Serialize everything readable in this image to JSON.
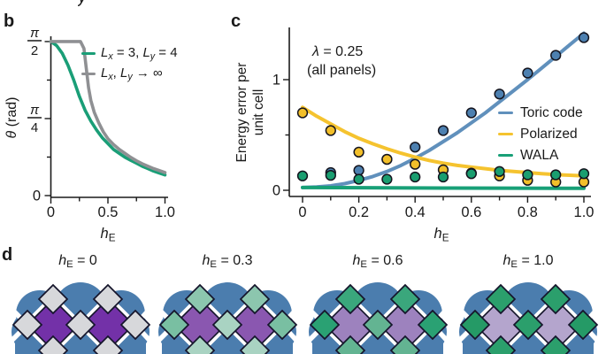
{
  "fragment_top": {
    "text": "y"
  },
  "panel_b": {
    "label": "b",
    "ylabel_segments": [
      {
        "t": "θ",
        "i": true
      },
      {
        "t": " (rad)"
      }
    ],
    "xlabel_segments": [
      {
        "t": "h",
        "i": true
      },
      {
        "t": "E",
        "sub": true
      }
    ],
    "legend": [
      {
        "color": "#1a9e77",
        "segments": [
          {
            "t": "L",
            "i": true
          },
          {
            "t": "x",
            "i": true,
            "sub": true
          },
          {
            "t": " = 3, "
          },
          {
            "t": "L",
            "i": true
          },
          {
            "t": "y",
            "i": true,
            "sub": true
          },
          {
            "t": " = 4"
          }
        ]
      },
      {
        "color": "#8f9093",
        "segments": [
          {
            "t": "L",
            "i": true
          },
          {
            "t": "x",
            "i": true,
            "sub": true
          },
          {
            "t": ", "
          },
          {
            "t": "L",
            "i": true
          },
          {
            "t": "y",
            "i": true,
            "sub": true
          },
          {
            "t": " → ∞"
          }
        ]
      }
    ]
  },
  "panel_c": {
    "label": "c",
    "annotation_line1_segments": [
      {
        "t": "λ",
        "i": true
      },
      {
        "t": " = 0.25"
      }
    ],
    "annotation_line2": "(all panels)",
    "ylabel_line1": "Energy error per",
    "ylabel_line2": "unit cell",
    "xlabel_segments": [
      {
        "t": "h",
        "i": true
      },
      {
        "t": "E",
        "sub": true
      }
    ],
    "legend": [
      {
        "label": "Toric code",
        "color": "#6090bc"
      },
      {
        "label": "Polarized",
        "color": "#f5c32f"
      },
      {
        "label": "WALA",
        "color": "#18a077"
      }
    ]
  },
  "panel_d": {
    "label": "d",
    "cloud_color": "#4b7dae",
    "outline_color": "#15152b",
    "street_color": "#ffffff",
    "panels": [
      {
        "label_segments": [
          {
            "t": "h",
            "i": true
          },
          {
            "t": "E",
            "sub": true
          },
          {
            "t": " = 0"
          }
        ],
        "large": "#7331a8",
        "small_top": "#d7d8db",
        "small_side": "#d7d8db",
        "small_center": "#d7d8db"
      },
      {
        "label_segments": [
          {
            "t": "h",
            "i": true
          },
          {
            "t": "E",
            "sub": true
          },
          {
            "t": " = 0.3"
          }
        ],
        "large": "#8a57b0",
        "small_top": "#8cc6ae",
        "small_side": "#79bfa2",
        "small_center": "#a9d3c2"
      },
      {
        "label_segments": [
          {
            "t": "h",
            "i": true
          },
          {
            "t": "E",
            "sub": true
          },
          {
            "t": " = 0.6"
          }
        ],
        "large": "#9d82be",
        "small_top": "#3aa77c",
        "small_side": "#2aa173",
        "small_center": "#63b492"
      },
      {
        "label_segments": [
          {
            "t": "h",
            "i": true
          },
          {
            "t": "E",
            "sub": true
          },
          {
            "t": " = 1.0"
          }
        ],
        "large": "#b4a5cd",
        "small_top": "#2b9f6c",
        "small_side": "#259a66",
        "small_center": "#2b9f6c"
      }
    ]
  },
  "chart_data": [
    {
      "id": "panel_b",
      "type": "line",
      "xlabel": "h_E",
      "ylabel": "θ (rad)",
      "xlim": [
        0,
        1.0
      ],
      "ylim": [
        0,
        1.62
      ],
      "grid": false,
      "x_ticks": {
        "major": [
          0,
          0.5,
          1.0
        ],
        "labels": [
          {
            "text": "0"
          },
          {
            "text": "0.5"
          },
          {
            "text": "1.0"
          }
        ],
        "minor": [
          0.25,
          0.75
        ]
      },
      "y_ticks": {
        "major": [
          0,
          0.7854,
          1.5708
        ],
        "labels": [
          {
            "text": "0"
          },
          {
            "frac": [
              "π",
              "4"
            ]
          },
          {
            "frac": [
              "π",
              "2"
            ]
          }
        ],
        "minor": [
          0.3927,
          1.1781
        ]
      },
      "series": [
        {
          "name": "Lx = 3, Ly = 4",
          "color": "#1a9e77",
          "width": 3.6,
          "points": [
            [
              0,
              1.571
            ],
            [
              0.05,
              1.53
            ],
            [
              0.1,
              1.45
            ],
            [
              0.15,
              1.33
            ],
            [
              0.2,
              1.18
            ],
            [
              0.25,
              1.01
            ],
            [
              0.3,
              0.87
            ],
            [
              0.35,
              0.76
            ],
            [
              0.4,
              0.67
            ],
            [
              0.45,
              0.59
            ],
            [
              0.5,
              0.53
            ],
            [
              0.55,
              0.47
            ],
            [
              0.6,
              0.43
            ],
            [
              0.65,
              0.39
            ],
            [
              0.7,
              0.36
            ],
            [
              0.75,
              0.33
            ],
            [
              0.8,
              0.3
            ],
            [
              0.85,
              0.275
            ],
            [
              0.9,
              0.25
            ],
            [
              0.95,
              0.23
            ],
            [
              1.0,
              0.21
            ]
          ]
        },
        {
          "name": "Lx, Ly → ∞",
          "color": "#8f9093",
          "width": 3.6,
          "points": [
            [
              0,
              1.571
            ],
            [
              0.26,
              1.571
            ],
            [
              0.29,
              1.5
            ],
            [
              0.31,
              1.3
            ],
            [
              0.33,
              1.1
            ],
            [
              0.35,
              0.97
            ],
            [
              0.38,
              0.85
            ],
            [
              0.42,
              0.74
            ],
            [
              0.46,
              0.65
            ],
            [
              0.5,
              0.58
            ],
            [
              0.55,
              0.52
            ],
            [
              0.6,
              0.47
            ],
            [
              0.65,
              0.43
            ],
            [
              0.7,
              0.39
            ],
            [
              0.75,
              0.355
            ],
            [
              0.8,
              0.325
            ],
            [
              0.85,
              0.3
            ],
            [
              0.9,
              0.275
            ],
            [
              0.95,
              0.255
            ],
            [
              1.0,
              0.235
            ]
          ]
        }
      ]
    },
    {
      "id": "panel_c",
      "type": "scatter+line",
      "annotation": "λ = 0.25 (all panels)",
      "xlabel": "h_E",
      "ylabel": "Energy error per unit cell",
      "xlim": [
        0,
        1.0
      ],
      "ylim": [
        0,
        1.47
      ],
      "grid": false,
      "legend_position": "right-middle",
      "x_ticks": {
        "major": [
          0,
          0.2,
          0.4,
          0.6,
          0.8,
          1.0
        ],
        "labels": [
          {
            "text": "0"
          },
          {
            "text": "0.2"
          },
          {
            "text": "0.4"
          },
          {
            "text": "0.6"
          },
          {
            "text": "0.8"
          },
          {
            "text": "1.0"
          }
        ],
        "minor": [
          0.1,
          0.3,
          0.5,
          0.7,
          0.9
        ]
      },
      "y_ticks": {
        "major": [
          0,
          1
        ],
        "labels": [
          {
            "text": "0"
          },
          {
            "text": "1"
          }
        ],
        "minor": [
          0.5
        ]
      },
      "series": [
        {
          "name": "Toric code",
          "color_line": "#6090bc",
          "color_dot": "#4d80b0",
          "width": 4,
          "line": [
            [
              0,
              0.025
            ],
            [
              0.05,
              0.03
            ],
            [
              0.1,
              0.04
            ],
            [
              0.15,
              0.06
            ],
            [
              0.2,
              0.09
            ],
            [
              0.25,
              0.125
            ],
            [
              0.3,
              0.17
            ],
            [
              0.35,
              0.225
            ],
            [
              0.4,
              0.29
            ],
            [
              0.45,
              0.36
            ],
            [
              0.5,
              0.44
            ],
            [
              0.55,
              0.52
            ],
            [
              0.6,
              0.61
            ],
            [
              0.65,
              0.7
            ],
            [
              0.7,
              0.8
            ],
            [
              0.75,
              0.9
            ],
            [
              0.8,
              1.0
            ],
            [
              0.85,
              1.105
            ],
            [
              0.9,
              1.21
            ],
            [
              0.95,
              1.315
            ],
            [
              1.0,
              1.42
            ]
          ],
          "dots": [
            [
              0.1,
              0.16
            ],
            [
              0.2,
              0.18
            ],
            [
              0.3,
              0.28
            ],
            [
              0.4,
              0.39
            ],
            [
              0.5,
              0.54
            ],
            [
              0.6,
              0.7
            ],
            [
              0.7,
              0.87
            ],
            [
              0.8,
              1.06
            ],
            [
              0.9,
              1.22
            ],
            [
              1.0,
              1.38
            ]
          ]
        },
        {
          "name": "Polarized",
          "color_line": "#f5c32f",
          "color_dot": "#f2bf2a",
          "width": 4,
          "line": [
            [
              0,
              0.75
            ],
            [
              0.05,
              0.67
            ],
            [
              0.1,
              0.6
            ],
            [
              0.15,
              0.53
            ],
            [
              0.2,
              0.47
            ],
            [
              0.25,
              0.42
            ],
            [
              0.3,
              0.375
            ],
            [
              0.35,
              0.335
            ],
            [
              0.4,
              0.3
            ],
            [
              0.45,
              0.27
            ],
            [
              0.5,
              0.245
            ],
            [
              0.55,
              0.225
            ],
            [
              0.6,
              0.21
            ],
            [
              0.65,
              0.195
            ],
            [
              0.7,
              0.18
            ],
            [
              0.75,
              0.17
            ],
            [
              0.8,
              0.16
            ],
            [
              0.85,
              0.15
            ],
            [
              0.9,
              0.142
            ],
            [
              0.95,
              0.136
            ],
            [
              1.0,
              0.13
            ]
          ],
          "dots": [
            [
              0,
              0.7
            ],
            [
              0.1,
              0.54
            ],
            [
              0.2,
              0.345
            ],
            [
              0.3,
              0.28
            ],
            [
              0.4,
              0.235
            ],
            [
              0.5,
              0.185
            ],
            [
              0.6,
              0.155
            ],
            [
              0.7,
              0.13
            ],
            [
              0.8,
              0.09
            ],
            [
              0.9,
              0.075
            ],
            [
              1.0,
              0.075
            ]
          ]
        },
        {
          "name": "WALA",
          "color_line": "#18a077",
          "color_dot": "#1a9e70",
          "width": 4,
          "line": [
            [
              0,
              0.025
            ],
            [
              0.5,
              0.02
            ],
            [
              1.0,
              0.018
            ]
          ],
          "dots": [
            [
              0,
              0.13
            ],
            [
              0.1,
              0.135
            ],
            [
              0.2,
              0.1
            ],
            [
              0.3,
              0.1
            ],
            [
              0.4,
              0.12
            ],
            [
              0.5,
              0.12
            ],
            [
              0.6,
              0.15
            ],
            [
              0.7,
              0.17
            ],
            [
              0.8,
              0.14
            ],
            [
              0.9,
              0.14
            ],
            [
              1.0,
              0.15
            ]
          ]
        }
      ]
    }
  ]
}
